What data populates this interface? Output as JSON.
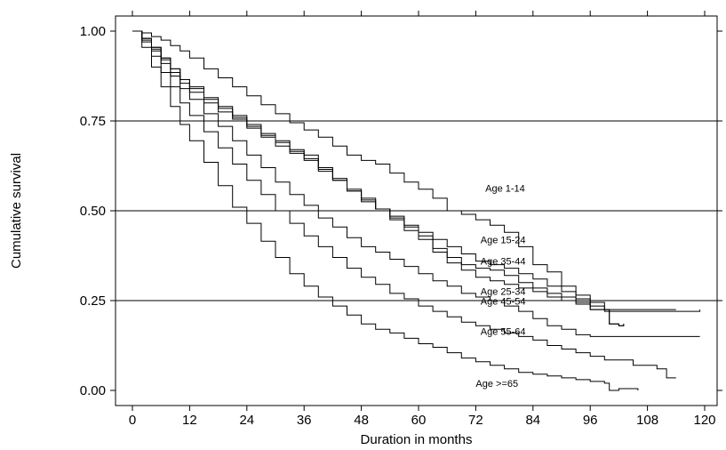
{
  "chart_data": {
    "type": "line",
    "title": "",
    "xlabel": "Duration in months",
    "ylabel": "Cumulative survival",
    "xlim": [
      0,
      120
    ],
    "ylim": [
      0,
      1
    ],
    "x_ticks": [
      0,
      12,
      24,
      36,
      48,
      60,
      72,
      84,
      96,
      108,
      120
    ],
    "y_ticks": [
      0,
      0.25,
      0.5,
      0.75,
      1
    ],
    "y_tick_labels": [
      "0.00",
      "0.25",
      "0.50",
      "0.75",
      "1.00"
    ],
    "grid": {
      "horizontal": [
        0.25,
        0.5,
        0.75
      ],
      "vertical": []
    },
    "series": [
      {
        "name": "Age 1-14",
        "label_at": [
          74,
          0.553
        ],
        "points": [
          [
            0,
            1.0
          ],
          [
            2,
            0.995
          ],
          [
            4,
            0.985
          ],
          [
            6,
            0.975
          ],
          [
            8,
            0.96
          ],
          [
            10,
            0.945
          ],
          [
            12,
            0.925
          ],
          [
            15,
            0.895
          ],
          [
            18,
            0.87
          ],
          [
            21,
            0.845
          ],
          [
            24,
            0.82
          ],
          [
            27,
            0.795
          ],
          [
            30,
            0.77
          ],
          [
            33,
            0.745
          ],
          [
            36,
            0.725
          ],
          [
            39,
            0.705
          ],
          [
            42,
            0.68
          ],
          [
            45,
            0.655
          ],
          [
            48,
            0.64
          ],
          [
            51,
            0.63
          ],
          [
            54,
            0.605
          ],
          [
            57,
            0.58
          ],
          [
            60,
            0.56
          ],
          [
            63,
            0.535
          ],
          [
            66,
            0.5
          ],
          [
            69,
            0.49
          ],
          [
            72,
            0.475
          ],
          [
            75,
            0.46
          ],
          [
            78,
            0.44
          ],
          [
            81,
            0.4
          ],
          [
            84,
            0.35
          ],
          [
            87,
            0.33
          ],
          [
            90,
            0.29
          ],
          [
            93,
            0.255
          ],
          [
            96,
            0.225
          ],
          [
            99,
            0.225
          ],
          [
            102,
            0.225
          ],
          [
            105,
            0.225
          ],
          [
            108,
            0.225
          ],
          [
            112,
            0.225
          ],
          [
            114,
            0.225
          ]
        ]
      },
      {
        "name": "Age 15-24",
        "label_at": [
          73,
          0.41
        ],
        "points": [
          [
            0,
            1.0
          ],
          [
            2,
            0.98
          ],
          [
            4,
            0.95
          ],
          [
            6,
            0.92
          ],
          [
            8,
            0.885
          ],
          [
            10,
            0.855
          ],
          [
            12,
            0.83
          ],
          [
            15,
            0.8
          ],
          [
            18,
            0.775
          ],
          [
            21,
            0.755
          ],
          [
            24,
            0.73
          ],
          [
            27,
            0.705
          ],
          [
            30,
            0.68
          ],
          [
            33,
            0.66
          ],
          [
            36,
            0.64
          ],
          [
            39,
            0.615
          ],
          [
            42,
            0.585
          ],
          [
            45,
            0.555
          ],
          [
            48,
            0.525
          ],
          [
            51,
            0.505
          ],
          [
            54,
            0.485
          ],
          [
            57,
            0.46
          ],
          [
            60,
            0.44
          ],
          [
            63,
            0.42
          ],
          [
            66,
            0.4
          ],
          [
            69,
            0.38
          ],
          [
            72,
            0.36
          ],
          [
            75,
            0.35
          ],
          [
            78,
            0.34
          ],
          [
            81,
            0.325
          ],
          [
            84,
            0.31
          ],
          [
            87,
            0.29
          ],
          [
            90,
            0.275
          ],
          [
            93,
            0.265
          ],
          [
            96,
            0.245
          ],
          [
            99,
            0.22
          ],
          [
            102,
            0.22
          ],
          [
            105,
            0.22
          ],
          [
            108,
            0.22
          ],
          [
            112,
            0.22
          ],
          [
            114,
            0.22
          ],
          [
            119,
            0.225
          ]
        ]
      },
      {
        "name": "Age 35-44",
        "label_at": [
          73,
          0.35
        ],
        "points": [
          [
            0,
            1.0
          ],
          [
            2,
            0.98
          ],
          [
            4,
            0.955
          ],
          [
            6,
            0.925
          ],
          [
            8,
            0.895
          ],
          [
            10,
            0.865
          ],
          [
            12,
            0.84
          ],
          [
            15,
            0.81
          ],
          [
            18,
            0.785
          ],
          [
            21,
            0.76
          ],
          [
            24,
            0.735
          ],
          [
            27,
            0.71
          ],
          [
            30,
            0.69
          ],
          [
            33,
            0.665
          ],
          [
            36,
            0.645
          ],
          [
            39,
            0.61
          ],
          [
            42,
            0.585
          ],
          [
            45,
            0.555
          ],
          [
            48,
            0.53
          ],
          [
            51,
            0.505
          ],
          [
            54,
            0.48
          ],
          [
            57,
            0.455
          ],
          [
            60,
            0.43
          ],
          [
            63,
            0.395
          ],
          [
            66,
            0.37
          ],
          [
            69,
            0.35
          ],
          [
            72,
            0.34
          ],
          [
            75,
            0.335
          ],
          [
            78,
            0.32
          ],
          [
            81,
            0.3
          ],
          [
            84,
            0.285
          ],
          [
            87,
            0.27
          ],
          [
            90,
            0.26
          ],
          [
            93,
            0.245
          ],
          [
            96,
            0.235
          ],
          [
            99,
            0.225
          ],
          [
            100,
            0.185
          ],
          [
            102,
            0.18
          ],
          [
            103,
            0.185
          ]
        ]
      },
      {
        "name": "Age 25-34",
        "label_at": [
          73,
          0.266
        ],
        "points": [
          [
            0,
            1.0
          ],
          [
            2,
            0.98
          ],
          [
            4,
            0.955
          ],
          [
            6,
            0.925
          ],
          [
            8,
            0.895
          ],
          [
            10,
            0.865
          ],
          [
            12,
            0.845
          ],
          [
            15,
            0.815
          ],
          [
            18,
            0.79
          ],
          [
            21,
            0.765
          ],
          [
            24,
            0.74
          ],
          [
            27,
            0.715
          ],
          [
            30,
            0.695
          ],
          [
            33,
            0.67
          ],
          [
            36,
            0.655
          ],
          [
            39,
            0.62
          ],
          [
            42,
            0.59
          ],
          [
            45,
            0.56
          ],
          [
            48,
            0.535
          ],
          [
            51,
            0.505
          ],
          [
            54,
            0.475
          ],
          [
            57,
            0.445
          ],
          [
            60,
            0.42
          ],
          [
            63,
            0.385
          ],
          [
            66,
            0.355
          ],
          [
            69,
            0.335
          ],
          [
            72,
            0.315
          ],
          [
            75,
            0.305
          ],
          [
            78,
            0.295
          ],
          [
            81,
            0.285
          ],
          [
            84,
            0.275
          ],
          [
            87,
            0.26
          ],
          [
            90,
            0.25
          ],
          [
            93,
            0.24
          ],
          [
            96,
            0.225
          ],
          [
            99,
            0.225
          ],
          [
            100,
            0.185
          ],
          [
            102,
            0.18
          ],
          [
            103,
            0.185
          ]
        ]
      },
      {
        "name": "Age 45-54",
        "label_at": [
          73,
          0.239
        ],
        "points": [
          [
            0,
            1.0
          ],
          [
            2,
            0.975
          ],
          [
            4,
            0.945
          ],
          [
            6,
            0.91
          ],
          [
            8,
            0.875
          ],
          [
            10,
            0.84
          ],
          [
            12,
            0.81
          ],
          [
            15,
            0.77
          ],
          [
            18,
            0.735
          ],
          [
            21,
            0.695
          ],
          [
            24,
            0.655
          ],
          [
            27,
            0.62
          ],
          [
            30,
            0.58
          ],
          [
            33,
            0.545
          ],
          [
            36,
            0.515
          ],
          [
            39,
            0.48
          ],
          [
            42,
            0.455
          ],
          [
            45,
            0.425
          ],
          [
            48,
            0.4
          ],
          [
            51,
            0.385
          ],
          [
            54,
            0.365
          ],
          [
            57,
            0.345
          ],
          [
            60,
            0.325
          ],
          [
            63,
            0.305
          ],
          [
            66,
            0.29
          ],
          [
            69,
            0.27
          ],
          [
            72,
            0.26
          ],
          [
            75,
            0.25
          ],
          [
            78,
            0.235
          ],
          [
            81,
            0.22
          ],
          [
            84,
            0.2
          ],
          [
            87,
            0.18
          ],
          [
            90,
            0.17
          ],
          [
            93,
            0.155
          ],
          [
            96,
            0.15
          ],
          [
            99,
            0.15
          ],
          [
            102,
            0.15
          ],
          [
            105,
            0.15
          ],
          [
            108,
            0.15
          ],
          [
            112,
            0.15
          ],
          [
            119,
            0.15
          ]
        ]
      },
      {
        "name": "Age 55-64",
        "label_at": [
          73,
          0.155
        ],
        "points": [
          [
            0,
            1.0
          ],
          [
            2,
            0.97
          ],
          [
            4,
            0.93
          ],
          [
            6,
            0.885
          ],
          [
            8,
            0.845
          ],
          [
            10,
            0.8
          ],
          [
            12,
            0.765
          ],
          [
            15,
            0.72
          ],
          [
            18,
            0.675
          ],
          [
            21,
            0.63
          ],
          [
            24,
            0.585
          ],
          [
            27,
            0.545
          ],
          [
            30,
            0.5
          ],
          [
            33,
            0.465
          ],
          [
            36,
            0.43
          ],
          [
            39,
            0.4
          ],
          [
            42,
            0.37
          ],
          [
            45,
            0.34
          ],
          [
            48,
            0.315
          ],
          [
            51,
            0.295
          ],
          [
            54,
            0.27
          ],
          [
            57,
            0.255
          ],
          [
            60,
            0.235
          ],
          [
            63,
            0.22
          ],
          [
            66,
            0.205
          ],
          [
            69,
            0.19
          ],
          [
            72,
            0.18
          ],
          [
            75,
            0.17
          ],
          [
            78,
            0.16
          ],
          [
            81,
            0.15
          ],
          [
            84,
            0.14
          ],
          [
            87,
            0.125
          ],
          [
            90,
            0.115
          ],
          [
            93,
            0.105
          ],
          [
            96,
            0.095
          ],
          [
            99,
            0.085
          ],
          [
            102,
            0.085
          ],
          [
            105,
            0.07
          ],
          [
            108,
            0.07
          ],
          [
            110,
            0.06
          ],
          [
            112,
            0.035
          ],
          [
            114,
            0.035
          ]
        ]
      },
      {
        "name": "Age >=65",
        "label_at": [
          72,
          0.01
        ],
        "points": [
          [
            0,
            1.0
          ],
          [
            2,
            0.955
          ],
          [
            4,
            0.9
          ],
          [
            6,
            0.845
          ],
          [
            8,
            0.79
          ],
          [
            10,
            0.74
          ],
          [
            12,
            0.695
          ],
          [
            15,
            0.635
          ],
          [
            18,
            0.57
          ],
          [
            21,
            0.51
          ],
          [
            24,
            0.465
          ],
          [
            27,
            0.415
          ],
          [
            30,
            0.37
          ],
          [
            33,
            0.325
          ],
          [
            36,
            0.29
          ],
          [
            39,
            0.26
          ],
          [
            42,
            0.235
          ],
          [
            45,
            0.21
          ],
          [
            48,
            0.185
          ],
          [
            51,
            0.17
          ],
          [
            54,
            0.16
          ],
          [
            57,
            0.145
          ],
          [
            60,
            0.13
          ],
          [
            63,
            0.12
          ],
          [
            66,
            0.105
          ],
          [
            69,
            0.09
          ],
          [
            72,
            0.08
          ],
          [
            75,
            0.07
          ],
          [
            78,
            0.06
          ],
          [
            81,
            0.05
          ],
          [
            84,
            0.045
          ],
          [
            87,
            0.04
          ],
          [
            90,
            0.035
          ],
          [
            93,
            0.03
          ],
          [
            96,
            0.025
          ],
          [
            99,
            0.02
          ],
          [
            100,
            0.0
          ],
          [
            102,
            0.005
          ],
          [
            106,
            0.0
          ]
        ]
      }
    ]
  }
}
